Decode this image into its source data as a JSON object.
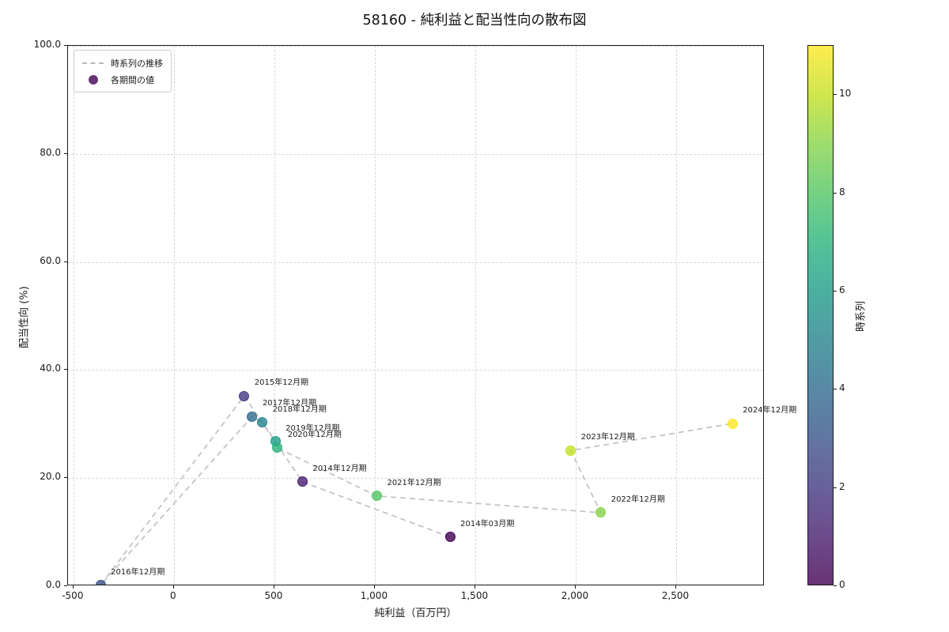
{
  "title": "58160 - 純利益と配当性向の散布図",
  "chart_data": {
    "type": "scatter",
    "title": "58160 - 純利益と配当性向の散布図",
    "xlabel": "純利益（百万円）",
    "ylabel": "配当性向 (%)",
    "xlim": [
      -527,
      2941
    ],
    "ylim": [
      0,
      100
    ],
    "grid": true,
    "x_ticks": [
      -500,
      0,
      500,
      1000,
      1500,
      2000,
      2500
    ],
    "x_tick_labels": [
      "-500",
      "0",
      "500",
      "1,000",
      "1,500",
      "2,000",
      "2,500"
    ],
    "y_ticks": [
      0,
      20,
      40,
      60,
      80,
      100
    ],
    "y_tick_labels": [
      "0.0",
      "20.0",
      "40.0",
      "60.0",
      "80.0",
      "100.0"
    ],
    "legend": {
      "line_label": "時系列の推移",
      "point_label": "各期間の値",
      "position": "upper left"
    },
    "points": [
      {
        "label": "2014年03月期",
        "x": 1375,
        "y": 9.1,
        "t": 0,
        "color": "#440154"
      },
      {
        "label": "2014年12月期",
        "x": 640,
        "y": 19.3,
        "t": 1,
        "color": "#481E70"
      },
      {
        "label": "2015年12月期",
        "x": 350,
        "y": 35.2,
        "t": 2,
        "color": "#433982"
      },
      {
        "label": "2016年12月期",
        "x": -365,
        "y": 0.2,
        "t": 3,
        "color": "#39538B"
      },
      {
        "label": "2017年12月期",
        "x": 390,
        "y": 31.4,
        "t": 4,
        "color": "#2E6C8E"
      },
      {
        "label": "2018年12月期",
        "x": 440,
        "y": 30.3,
        "t": 5,
        "color": "#25838E"
      },
      {
        "label": "2019年12月期",
        "x": 505,
        "y": 26.8,
        "t": 6,
        "color": "#1E9C89"
      },
      {
        "label": "2020年12月期",
        "x": 515,
        "y": 25.6,
        "t": 7,
        "color": "#2BB37C"
      },
      {
        "label": "2021年12月期",
        "x": 1010,
        "y": 16.7,
        "t": 8,
        "color": "#52C664"
      },
      {
        "label": "2022年12月期",
        "x": 2125,
        "y": 13.6,
        "t": 9,
        "color": "#86D449"
      },
      {
        "label": "2023年12月期",
        "x": 1975,
        "y": 25.1,
        "t": 10,
        "color": "#C3E023"
      },
      {
        "label": "2024年12月期",
        "x": 2780,
        "y": 30.1,
        "t": 11,
        "color": "#FDE725"
      }
    ],
    "colorbar": {
      "label": "時系列",
      "min": 0,
      "max": 11,
      "ticks": [
        0,
        2,
        4,
        6,
        8,
        10
      ],
      "colors": [
        "#440154",
        "#481E70",
        "#433982",
        "#39538B",
        "#2E6C8E",
        "#25838E",
        "#1E9C89",
        "#2BB37C",
        "#52C664",
        "#86D449",
        "#C3E023",
        "#FDE725"
      ]
    },
    "line_color": "#c4c4c4",
    "grid_color": "#d8d8d8"
  }
}
